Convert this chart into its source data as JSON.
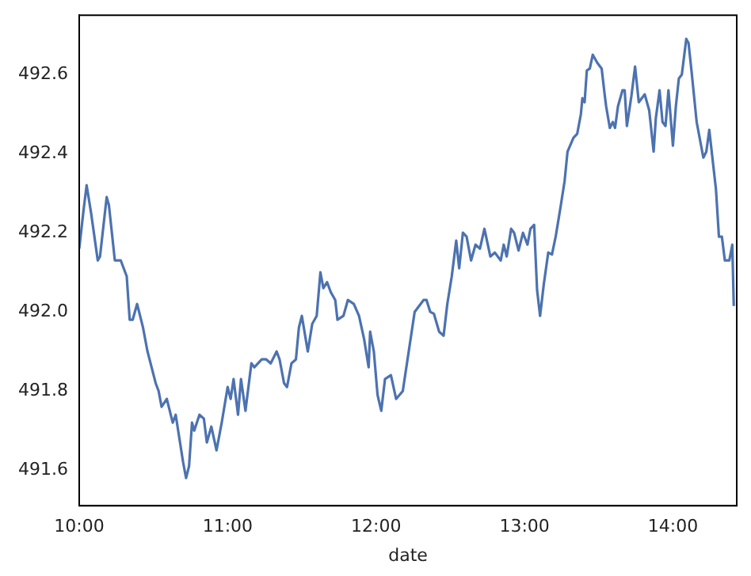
{
  "chart_data": {
    "type": "line",
    "xlabel": "date",
    "x": [
      10.0,
      10.03,
      10.05,
      10.08,
      10.125,
      10.14,
      10.185,
      10.2,
      10.24,
      10.28,
      10.32,
      10.34,
      10.36,
      10.39,
      10.43,
      10.46,
      10.515,
      10.535,
      10.555,
      10.59,
      10.63,
      10.65,
      10.675,
      10.7,
      10.72,
      10.74,
      10.76,
      10.775,
      10.81,
      10.84,
      10.86,
      10.89,
      10.925,
      10.96,
      11.0,
      11.02,
      11.04,
      11.07,
      11.09,
      11.12,
      11.16,
      11.18,
      11.23,
      11.26,
      11.29,
      11.33,
      11.35,
      11.38,
      11.4,
      11.43,
      11.46,
      11.48,
      11.5,
      11.54,
      11.57,
      11.6,
      11.625,
      11.645,
      11.67,
      11.695,
      11.725,
      11.74,
      11.78,
      11.81,
      11.85,
      11.885,
      11.92,
      11.95,
      11.96,
      11.985,
      12.01,
      12.035,
      12.06,
      12.1,
      12.135,
      12.18,
      12.22,
      12.26,
      12.32,
      12.34,
      12.365,
      12.39,
      12.425,
      12.455,
      12.48,
      12.51,
      12.54,
      12.56,
      12.585,
      12.61,
      12.64,
      12.67,
      12.7,
      12.73,
      12.77,
      12.8,
      12.84,
      12.86,
      12.88,
      12.91,
      12.93,
      12.96,
      12.99,
      13.02,
      13.04,
      13.065,
      13.085,
      13.105,
      13.13,
      13.16,
      13.185,
      13.21,
      13.245,
      13.27,
      13.29,
      13.33,
      13.355,
      13.38,
      13.39,
      13.405,
      13.42,
      13.44,
      13.46,
      13.49,
      13.52,
      13.54,
      13.55,
      13.575,
      13.595,
      13.61,
      13.63,
      13.66,
      13.675,
      13.69,
      13.72,
      13.745,
      13.77,
      13.81,
      13.84,
      13.87,
      13.885,
      13.91,
      13.93,
      13.95,
      13.97,
      14.0,
      14.02,
      14.04,
      14.06,
      14.09,
      14.105,
      14.125,
      14.16,
      14.205,
      14.225,
      14.245,
      14.29,
      14.31,
      14.33,
      14.35,
      14.38,
      14.4,
      14.41
    ],
    "values": [
      492.16,
      492.26,
      492.32,
      492.25,
      492.13,
      492.14,
      492.29,
      492.27,
      492.13,
      492.13,
      492.09,
      491.98,
      491.98,
      492.02,
      491.96,
      491.9,
      491.82,
      491.8,
      491.76,
      491.78,
      491.72,
      491.74,
      491.68,
      491.62,
      491.58,
      491.61,
      491.72,
      491.7,
      491.74,
      491.73,
      491.67,
      491.71,
      491.65,
      491.72,
      491.81,
      491.78,
      491.83,
      491.74,
      491.83,
      491.75,
      491.87,
      491.86,
      491.88,
      491.88,
      491.87,
      491.9,
      491.88,
      491.82,
      491.81,
      491.87,
      491.88,
      491.96,
      491.99,
      491.9,
      491.97,
      491.99,
      492.1,
      492.06,
      492.075,
      492.05,
      492.03,
      491.98,
      491.99,
      492.03,
      492.02,
      491.99,
      491.93,
      491.86,
      491.95,
      491.9,
      491.79,
      491.75,
      491.83,
      491.84,
      491.78,
      491.8,
      491.9,
      492.0,
      492.03,
      492.03,
      492.0,
      491.995,
      491.95,
      491.94,
      492.02,
      492.09,
      492.18,
      492.11,
      492.2,
      492.19,
      492.13,
      492.17,
      492.16,
      492.21,
      492.14,
      492.15,
      492.13,
      492.17,
      492.14,
      492.21,
      492.2,
      492.155,
      492.2,
      492.17,
      492.21,
      492.22,
      492.055,
      491.99,
      492.07,
      492.15,
      492.145,
      492.19,
      492.27,
      492.33,
      492.405,
      492.44,
      492.45,
      492.5,
      492.54,
      492.53,
      492.61,
      492.615,
      492.65,
      492.63,
      492.615,
      492.55,
      492.52,
      492.465,
      492.48,
      492.465,
      492.52,
      492.56,
      492.56,
      492.47,
      492.545,
      492.62,
      492.53,
      492.55,
      492.51,
      492.405,
      492.49,
      492.56,
      492.48,
      492.47,
      492.56,
      492.42,
      492.52,
      492.59,
      492.6,
      492.69,
      492.68,
      492.61,
      492.48,
      492.39,
      492.405,
      492.46,
      492.31,
      492.19,
      492.19,
      492.13,
      492.13,
      492.17,
      492.015
    ],
    "color": "#4c72b0",
    "xlim": [
      10,
      14.43
    ],
    "xticks": [
      {
        "value": 10,
        "label": "10:00"
      },
      {
        "value": 11,
        "label": "11:00"
      },
      {
        "value": 12,
        "label": "12:00"
      },
      {
        "value": 13,
        "label": "13:00"
      },
      {
        "value": 14,
        "label": "14:00"
      }
    ],
    "ylim": [
      491.51,
      492.75
    ],
    "yticks": [
      491.6,
      491.8,
      {
        "value": 492,
        "label": "492.0"
      },
      492.2,
      492.4,
      492.6
    ],
    "grid": false,
    "legend": false
  }
}
